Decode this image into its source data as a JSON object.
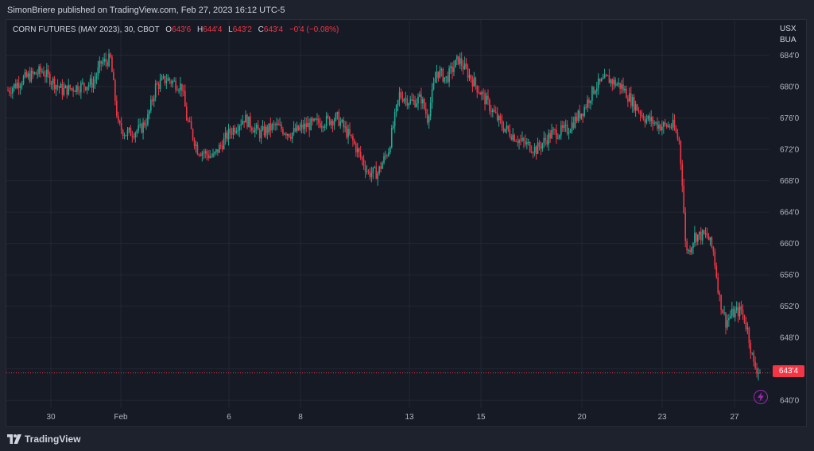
{
  "header": {
    "published": "SimonBriere published on TradingView.com, Feb 27, 2023 16:12 UTC-5"
  },
  "legend": {
    "symbol": "CORN FUTURES (MAY 2023), 30, CBOT",
    "o_label": "O",
    "o_value": "643'6",
    "h_label": "H",
    "h_value": "644'4",
    "l_label": "L",
    "l_value": "643'2",
    "c_label": "C",
    "c_value": "643'4",
    "change": "−0'4 (−0.08%)"
  },
  "unit": {
    "line1": "USX",
    "line2": "BUA"
  },
  "last_price_tag": "643'4",
  "footer": {
    "brand": "TradingView"
  },
  "colors": {
    "up": "#22ab94",
    "down": "#f23645",
    "accent": "#9c27b0"
  },
  "chart_data": {
    "type": "candlestick",
    "title": "CORN FUTURES (MAY 2023), 30, CBOT",
    "ylabel": "USX/BUA",
    "ylim": [
      639,
      687
    ],
    "y_ticks": [
      {
        "value": 640,
        "label": "640'0"
      },
      {
        "value": 644,
        "label": "644'0"
      },
      {
        "value": 648,
        "label": "648'0"
      },
      {
        "value": 652,
        "label": "652'0"
      },
      {
        "value": 656,
        "label": "656'0"
      },
      {
        "value": 660,
        "label": "660'0"
      },
      {
        "value": 664,
        "label": "664'0"
      },
      {
        "value": 668,
        "label": "668'0"
      },
      {
        "value": 672,
        "label": "672'0"
      },
      {
        "value": 676,
        "label": "676'0"
      },
      {
        "value": 680,
        "label": "680'0"
      },
      {
        "value": 684,
        "label": "684'0"
      }
    ],
    "x_ticks": [
      "30",
      "Feb",
      "6",
      "8",
      "13",
      "15",
      "20",
      "23",
      "27"
    ],
    "last_price": 643.5,
    "close_path": [
      {
        "i": 0,
        "v": 679.5
      },
      {
        "i": 10,
        "v": 681
      },
      {
        "i": 22,
        "v": 682
      },
      {
        "i": 35,
        "v": 679.5
      },
      {
        "i": 55,
        "v": 680.5
      },
      {
        "i": 60,
        "v": 683
      },
      {
        "i": 66,
        "v": 683.5
      },
      {
        "i": 71,
        "v": 675
      },
      {
        "i": 76,
        "v": 674
      },
      {
        "i": 85,
        "v": 674.5
      },
      {
        "i": 90,
        "v": 676
      },
      {
        "i": 95,
        "v": 680
      },
      {
        "i": 102,
        "v": 681
      },
      {
        "i": 112,
        "v": 680
      },
      {
        "i": 115,
        "v": 676
      },
      {
        "i": 122,
        "v": 672
      },
      {
        "i": 132,
        "v": 671
      },
      {
        "i": 142,
        "v": 674
      },
      {
        "i": 152,
        "v": 676
      },
      {
        "i": 162,
        "v": 674
      },
      {
        "i": 172,
        "v": 675
      },
      {
        "i": 182,
        "v": 674
      },
      {
        "i": 192,
        "v": 675
      },
      {
        "i": 202,
        "v": 675.5
      },
      {
        "i": 212,
        "v": 676
      },
      {
        "i": 222,
        "v": 673
      },
      {
        "i": 232,
        "v": 669
      },
      {
        "i": 238,
        "v": 669
      },
      {
        "i": 245,
        "v": 672
      },
      {
        "i": 252,
        "v": 679
      },
      {
        "i": 260,
        "v": 678
      },
      {
        "i": 266,
        "v": 678.5
      },
      {
        "i": 270,
        "v": 676
      },
      {
        "i": 276,
        "v": 682
      },
      {
        "i": 282,
        "v": 681
      },
      {
        "i": 290,
        "v": 683.5
      },
      {
        "i": 295,
        "v": 682
      },
      {
        "i": 305,
        "v": 679
      },
      {
        "i": 318,
        "v": 675
      },
      {
        "i": 330,
        "v": 673
      },
      {
        "i": 340,
        "v": 672
      },
      {
        "i": 350,
        "v": 674
      },
      {
        "i": 360,
        "v": 674.5
      },
      {
        "i": 370,
        "v": 677
      },
      {
        "i": 378,
        "v": 680
      },
      {
        "i": 386,
        "v": 681
      },
      {
        "i": 395,
        "v": 680
      },
      {
        "i": 402,
        "v": 678
      },
      {
        "i": 410,
        "v": 676
      },
      {
        "i": 420,
        "v": 675
      },
      {
        "i": 428,
        "v": 675
      },
      {
        "i": 432,
        "v": 673
      },
      {
        "i": 434,
        "v": 668
      },
      {
        "i": 436,
        "v": 660
      },
      {
        "i": 438,
        "v": 659
      },
      {
        "i": 442,
        "v": 661
      },
      {
        "i": 450,
        "v": 661
      },
      {
        "i": 454,
        "v": 659
      },
      {
        "i": 458,
        "v": 653
      },
      {
        "i": 462,
        "v": 650
      },
      {
        "i": 466,
        "v": 651
      },
      {
        "i": 472,
        "v": 651.5
      },
      {
        "i": 476,
        "v": 649
      },
      {
        "i": 480,
        "v": 644.5
      },
      {
        "i": 484,
        "v": 643.5
      }
    ]
  }
}
